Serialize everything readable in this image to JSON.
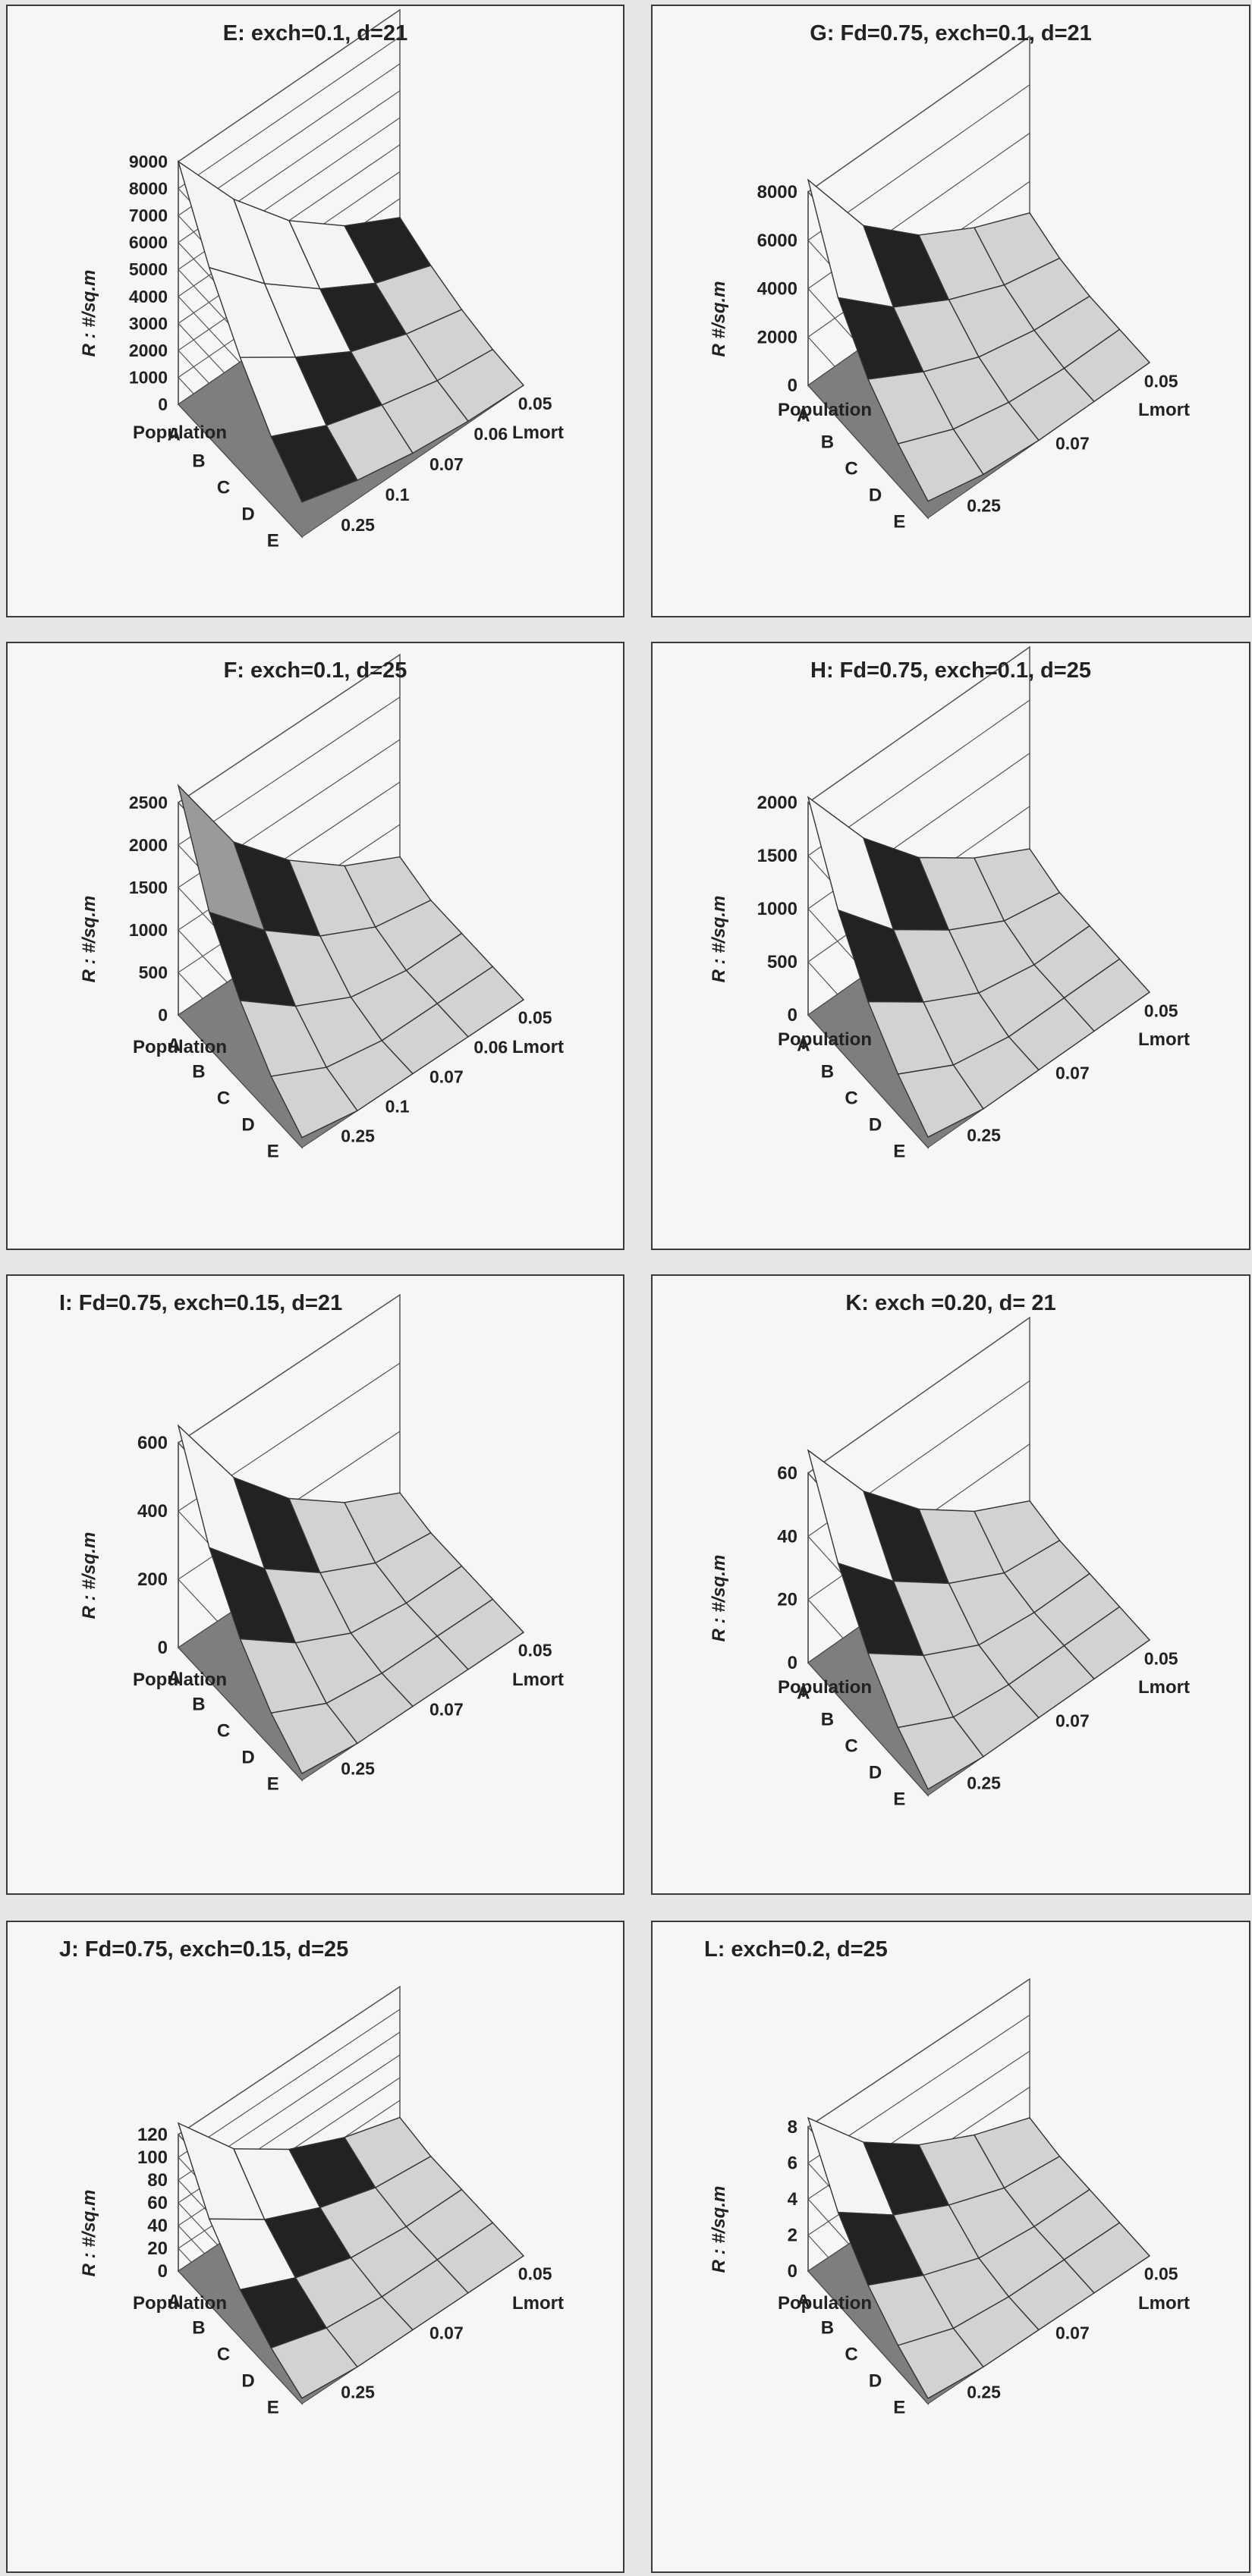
{
  "figure": {
    "colors": {
      "background": "#e6e6e4",
      "panel_fill": "#f6f6f5",
      "panel_border": "#3a3a3a",
      "surface_light": "#d2d2d2",
      "surface_white": "#f4f4f4",
      "surface_mid": "#9a9a9a",
      "surface_dark": "#222222",
      "floor": "#7e7e7e",
      "wall_lines": "#555555"
    }
  },
  "chart_data": [
    {
      "id": "E",
      "type": "surface",
      "title": "E: exch=0.1, d=21",
      "xlabel": "Population",
      "ylabel": "R : #/sq.m",
      "depth_label": "Lmort",
      "x_categories": [
        "A",
        "B",
        "C",
        "D",
        "E"
      ],
      "depth_categories": [
        "0.05",
        "0.06",
        "0.07",
        "0.1",
        "0.25"
      ],
      "z_ticks": [
        "0",
        "1000",
        "2000",
        "3000",
        "4000",
        "5000",
        "6000",
        "7000",
        "8000",
        "9000"
      ],
      "zlim": [
        0,
        9000
      ],
      "band_step": 1000,
      "peak": 9000,
      "grid": true,
      "values": [
        [
          9000,
          6200,
          4000,
          2400,
          1300
        ],
        [
          6300,
          4300,
          2700,
          1500,
          750
        ],
        [
          4200,
          2800,
          1600,
          850,
          350
        ],
        [
          2500,
          1500,
          850,
          350,
          100
        ],
        [
          1300,
          700,
          300,
          80,
          0
        ]
      ]
    },
    {
      "id": "G",
      "type": "surface",
      "title": "G: Fd=0.75, exch=0.1, d=21",
      "xlabel": "Population",
      "ylabel": "R #/sq.m",
      "depth_label": "Lmort",
      "x_categories": [
        "A",
        "B",
        "C",
        "D",
        "E"
      ],
      "depth_categories": [
        "0.05",
        "",
        "0.07",
        "",
        "0.25"
      ],
      "z_ticks": [
        "0",
        "2000",
        "4000",
        "6000",
        "8000"
      ],
      "zlim": [
        0,
        8000
      ],
      "band_step": 2000,
      "peak": 8500,
      "grid": true,
      "values": [
        [
          8500,
          5000,
          3000,
          1700,
          700
        ],
        [
          5000,
          3000,
          1700,
          700,
          200
        ],
        [
          3000,
          1700,
          700,
          200,
          0
        ],
        [
          1700,
          700,
          200,
          0,
          0
        ],
        [
          700,
          200,
          0,
          0,
          0
        ]
      ]
    },
    {
      "id": "F",
      "type": "surface",
      "title": "F: exch=0.1, d=25",
      "xlabel": "Population",
      "ylabel": "R : #/sq.m",
      "depth_label": "Lmort",
      "x_categories": [
        "A",
        "B",
        "C",
        "D",
        "E"
      ],
      "depth_categories": [
        "0.05",
        "0.06",
        "0.07",
        "0.1",
        "0.25"
      ],
      "z_ticks": [
        "0",
        "500",
        "1000",
        "1500",
        "2000",
        "2500"
      ],
      "zlim": [
        0,
        2500
      ],
      "band_step": 500,
      "peak": 2700,
      "grid": true,
      "values": [
        [
          2700,
          1600,
          950,
          450,
          120
        ],
        [
          1600,
          950,
          450,
          120,
          0
        ],
        [
          950,
          450,
          120,
          0,
          0
        ],
        [
          450,
          120,
          0,
          0,
          0
        ],
        [
          120,
          0,
          0,
          0,
          0
        ]
      ]
    },
    {
      "id": "H",
      "type": "surface",
      "title": "H: Fd=0.75, exch=0.1, d=25",
      "xlabel": "Population",
      "ylabel": "R : #/sq.m",
      "depth_label": "Lmort",
      "x_categories": [
        "A",
        "B",
        "C",
        "D",
        "E"
      ],
      "depth_categories": [
        "0.05",
        "",
        "0.07",
        "",
        "0.25"
      ],
      "z_ticks": [
        "0",
        "500",
        "1000",
        "1500",
        "2000"
      ],
      "zlim": [
        0,
        2000
      ],
      "band_step": 500,
      "peak": 2050,
      "grid": true,
      "values": [
        [
          2050,
          1300,
          750,
          380,
          100
        ],
        [
          1300,
          750,
          380,
          100,
          0
        ],
        [
          750,
          380,
          100,
          0,
          0
        ],
        [
          380,
          100,
          0,
          0,
          0
        ],
        [
          100,
          0,
          0,
          0,
          0
        ]
      ]
    },
    {
      "id": "I",
      "type": "surface",
      "title": "I: Fd=0.75, exch=0.15, d=21",
      "xlabel": "Population",
      "ylabel": "R : #/sq.m",
      "depth_label": "Lmort",
      "x_categories": [
        "A",
        "B",
        "C",
        "D",
        "E"
      ],
      "depth_categories": [
        "0.05",
        "",
        "0.07",
        "",
        "0.25"
      ],
      "z_ticks": [
        "0",
        "200",
        "400",
        "600"
      ],
      "zlim": [
        0,
        600
      ],
      "band_step": 200,
      "peak": 650,
      "grid": true,
      "values": [
        [
          650,
          390,
          220,
          100,
          20
        ],
        [
          390,
          220,
          100,
          20,
          0
        ],
        [
          220,
          100,
          20,
          0,
          0
        ],
        [
          100,
          20,
          0,
          0,
          0
        ],
        [
          20,
          0,
          0,
          0,
          0
        ]
      ]
    },
    {
      "id": "K",
      "type": "surface",
      "title": "K: exch =0.20, d= 21",
      "xlabel": "Population",
      "ylabel": "R : #/sq.m",
      "depth_label": "Lmort",
      "x_categories": [
        "A",
        "B",
        "C",
        "D",
        "E"
      ],
      "depth_categories": [
        "0.05",
        "",
        "0.07",
        "",
        "0.25"
      ],
      "z_ticks": [
        "0",
        "20",
        "40",
        "60"
      ],
      "zlim": [
        0,
        60
      ],
      "band_step": 20,
      "peak": 68,
      "grid": true,
      "values": [
        [
          68,
          42,
          24,
          11,
          2
        ],
        [
          42,
          24,
          11,
          2,
          0
        ],
        [
          24,
          11,
          2,
          0,
          0
        ],
        [
          11,
          2,
          0,
          0,
          0
        ],
        [
          2,
          0,
          0,
          0,
          0
        ]
      ]
    },
    {
      "id": "J",
      "type": "surface",
      "title": "J: Fd=0.75, exch=0.15, d=25",
      "xlabel": "Population",
      "ylabel": "R : #/sq.m",
      "depth_label": "Lmort",
      "x_categories": [
        "A",
        "B",
        "C",
        "D",
        "E"
      ],
      "depth_categories": [
        "0.05",
        "",
        "0.07",
        "",
        "0.25"
      ],
      "z_ticks": [
        "0",
        "20",
        "40",
        "60",
        "80",
        "100",
        "120"
      ],
      "zlim": [
        0,
        120
      ],
      "band_step": 20,
      "peak": 130,
      "grid": true,
      "values": [
        [
          130,
          75,
          42,
          20,
          5
        ],
        [
          75,
          42,
          20,
          5,
          0
        ],
        [
          42,
          20,
          5,
          0,
          0
        ],
        [
          20,
          5,
          0,
          0,
          0
        ],
        [
          5,
          0,
          0,
          0,
          0
        ]
      ]
    },
    {
      "id": "L",
      "type": "surface",
      "title": "L: exch=0.2, d=25",
      "xlabel": "Population",
      "ylabel": "R : #/sq.m",
      "depth_label": "Lmort",
      "x_categories": [
        "A",
        "B",
        "C",
        "D",
        "E"
      ],
      "depth_categories": [
        "0.05",
        "",
        "0.07",
        "",
        "0.25"
      ],
      "z_ticks": [
        "0",
        "2",
        "4",
        "6",
        "8"
      ],
      "zlim": [
        0,
        8
      ],
      "band_step": 2,
      "peak": 8.5,
      "grid": true,
      "values": [
        [
          8.5,
          5.1,
          2.9,
          1.4,
          0.3
        ],
        [
          5.1,
          2.9,
          1.4,
          0.3,
          0
        ],
        [
          2.9,
          1.4,
          0.3,
          0,
          0
        ],
        [
          1.4,
          0.3,
          0,
          0,
          0
        ],
        [
          0.3,
          0,
          0,
          0,
          0
        ]
      ]
    }
  ]
}
